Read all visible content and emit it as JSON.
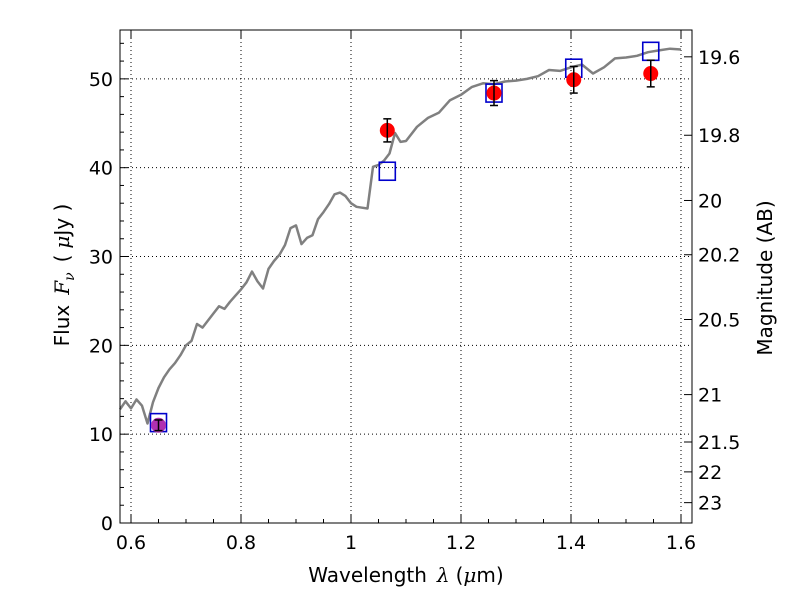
{
  "chart_data": {
    "type": "scatter",
    "title": "",
    "xlabel_text": "Wavelength",
    "xlabel_symbol": "λ",
    "xlabel_unit_open": "(",
    "xlabel_unit_mu": "μ",
    "xlabel_unit_rest": "m)",
    "ylabel_text": "Flux",
    "ylabel_symbol": "F",
    "ylabel_sub": "ν",
    "ylabel_unit_open": "(",
    "ylabel_unit_mu": "μ",
    "ylabel_unit_rest": "Jy )",
    "y2label": "Magnitude (AB)",
    "xlim": [
      0.58,
      1.62
    ],
    "ylim": [
      0,
      55.5
    ],
    "grid": true,
    "xticks": [
      0.6,
      0.8,
      1.0,
      1.2,
      1.4,
      1.6
    ],
    "xtick_labels": [
      "0.6",
      "0.8",
      "1",
      "1.2",
      "1.4",
      "1.6"
    ],
    "yticks": [
      0,
      10,
      20,
      30,
      40,
      50
    ],
    "ytick_labels": [
      "0",
      "10",
      "20",
      "30",
      "40",
      "50"
    ],
    "mag_ticks": [
      19.6,
      19.8,
      20,
      20.2,
      20.5,
      21,
      21.5,
      22,
      23
    ],
    "mag_tick_labels": [
      "19.6",
      "19.8",
      "20",
      "20.2",
      "20.5",
      "21",
      "21.5",
      "22",
      "23"
    ],
    "colors": {
      "model": "#808080",
      "observed": "#ff0000",
      "synthetic": "#0000cc",
      "overlap": "#b030b0"
    },
    "series": [
      {
        "name": "model_spectrum",
        "kind": "line",
        "x": [
          0.58,
          0.59,
          0.6,
          0.61,
          0.62,
          0.63,
          0.64,
          0.65,
          0.66,
          0.67,
          0.68,
          0.69,
          0.7,
          0.71,
          0.72,
          0.73,
          0.74,
          0.75,
          0.76,
          0.77,
          0.78,
          0.79,
          0.8,
          0.81,
          0.82,
          0.83,
          0.84,
          0.85,
          0.86,
          0.87,
          0.88,
          0.89,
          0.9,
          0.91,
          0.92,
          0.93,
          0.94,
          0.95,
          0.96,
          0.97,
          0.98,
          0.99,
          1.0,
          1.01,
          1.02,
          1.03,
          1.04,
          1.05,
          1.06,
          1.07,
          1.08,
          1.09,
          1.1,
          1.12,
          1.14,
          1.16,
          1.18,
          1.2,
          1.22,
          1.24,
          1.26,
          1.28,
          1.3,
          1.32,
          1.34,
          1.36,
          1.38,
          1.4,
          1.42,
          1.44,
          1.46,
          1.48,
          1.5,
          1.52,
          1.54,
          1.56,
          1.58,
          1.6
        ],
        "y": [
          12.8,
          13.7,
          12.9,
          13.9,
          13.2,
          11.2,
          13.6,
          15.2,
          16.4,
          17.3,
          18.0,
          18.9,
          20.0,
          20.5,
          22.4,
          22.0,
          22.8,
          23.6,
          24.4,
          24.1,
          24.9,
          25.6,
          26.3,
          27.1,
          28.3,
          27.2,
          26.4,
          28.6,
          29.5,
          30.2,
          31.3,
          33.2,
          33.5,
          31.4,
          32.1,
          32.4,
          34.2,
          35.0,
          35.9,
          37.0,
          37.2,
          36.8,
          36.0,
          35.6,
          35.5,
          35.4,
          40.1,
          40.3,
          40.8,
          41.6,
          43.9,
          42.9,
          43.0,
          44.6,
          45.6,
          46.2,
          47.6,
          48.2,
          49.1,
          49.5,
          49.4,
          49.7,
          49.8,
          50.0,
          50.3,
          51.0,
          50.9,
          51.3,
          51.6,
          50.6,
          51.3,
          52.3,
          52.4,
          52.6,
          53.0,
          53.2,
          53.4,
          53.3
        ]
      },
      {
        "name": "observed_photometry",
        "kind": "errorbar",
        "x": [
          0.65,
          1.066,
          1.26,
          1.405,
          1.545
        ],
        "y": [
          11.0,
          44.2,
          48.4,
          49.9,
          50.6
        ],
        "yerr": [
          0.6,
          1.3,
          1.4,
          1.5,
          1.5
        ]
      },
      {
        "name": "synthetic_photometry",
        "kind": "square",
        "x": [
          0.65,
          1.066,
          1.26,
          1.405,
          1.545
        ],
        "y": [
          11.3,
          39.6,
          48.4,
          51.2,
          53.1
        ]
      }
    ]
  }
}
